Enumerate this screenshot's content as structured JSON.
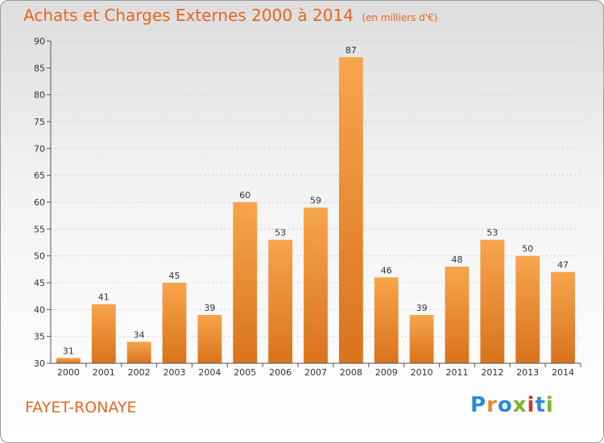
{
  "title": "Achats et Charges Externes 2000 à 2014",
  "subtitle": "(en milliers d'€)",
  "place": "FAYET-RONAYE",
  "logo": {
    "letters": [
      "P",
      "r",
      "o",
      "x",
      "i",
      "t",
      "i"
    ],
    "colors": [
      "#2a8ad8",
      "#e9891f",
      "#2a8ad8",
      "#7cb52b",
      "#d9341f",
      "#2a8ad8",
      "#7cb52b"
    ]
  },
  "colors": {
    "bar_top": "#f7a54c",
    "bar_bottom": "#d9731c",
    "title": "#e8661f"
  },
  "chart_data": {
    "type": "bar",
    "categories": [
      "2000",
      "2001",
      "2002",
      "2003",
      "2004",
      "2005",
      "2006",
      "2007",
      "2008",
      "2009",
      "2010",
      "2011",
      "2012",
      "2013",
      "2014"
    ],
    "values": [
      31,
      41,
      34,
      45,
      39,
      60,
      53,
      59,
      87,
      46,
      39,
      48,
      53,
      50,
      47
    ],
    "ylim": [
      30,
      90
    ],
    "yticks": [
      30,
      35,
      40,
      45,
      50,
      55,
      60,
      65,
      70,
      75,
      80,
      85,
      90
    ],
    "grid": true
  }
}
